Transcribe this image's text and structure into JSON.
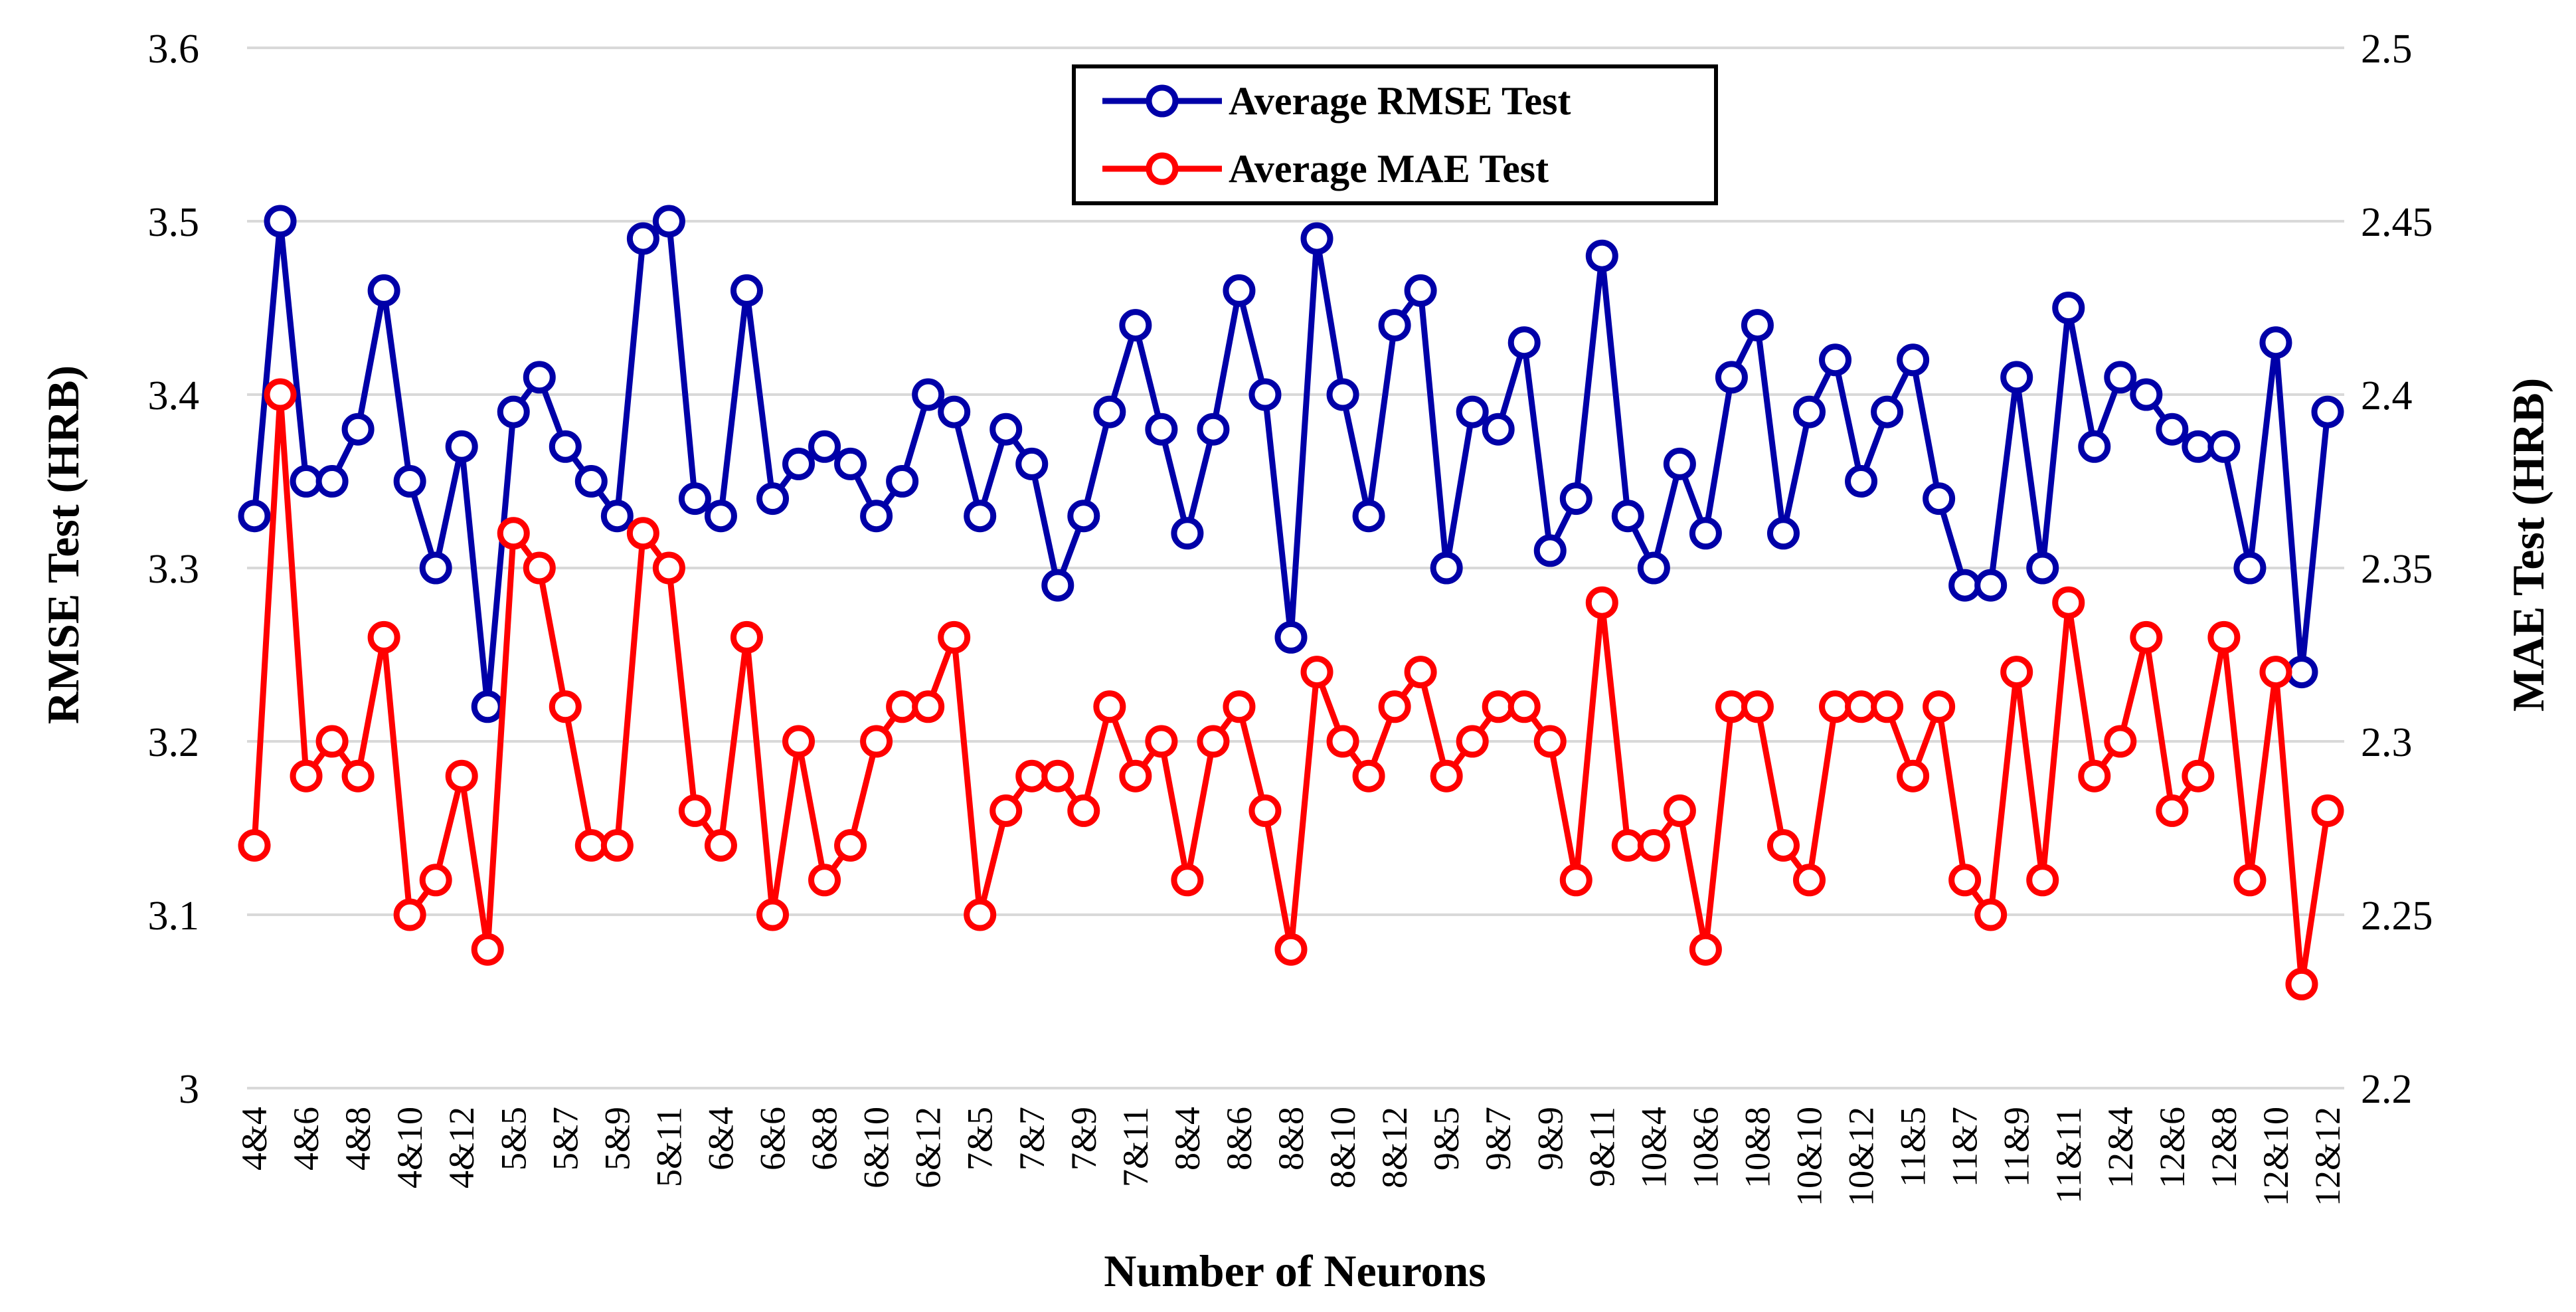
{
  "chart_data": {
    "type": "line",
    "xlabel": "Number of Neurons",
    "ylabel": "RMSE Test (HRB)",
    "y2label": "MAE Test (HRB)",
    "ylim": [
      3.0,
      3.6
    ],
    "y2lim": [
      2.2,
      2.5
    ],
    "yticks": [
      "3",
      "3.1",
      "3.2",
      "3.3",
      "3.4",
      "3.5",
      "3.6"
    ],
    "y2ticks": [
      "2.2",
      "2.25",
      "2.3",
      "2.35",
      "2.4",
      "2.45",
      "2.5"
    ],
    "legend_position": "top-center",
    "categories": [
      "4&4",
      "4&5",
      "4&6",
      "4&7",
      "4&8",
      "4&9",
      "4&10",
      "4&11",
      "4&12",
      "5&4",
      "5&5",
      "5&6",
      "5&7",
      "5&8",
      "5&9",
      "5&10",
      "5&11",
      "5&12",
      "6&4",
      "6&5",
      "6&6",
      "6&7",
      "6&8",
      "6&9",
      "6&10",
      "6&11",
      "6&12",
      "7&4",
      "7&5",
      "7&6",
      "7&7",
      "7&8",
      "7&9",
      "7&10",
      "7&11",
      "7&12",
      "8&4",
      "8&5",
      "8&6",
      "8&7",
      "8&8",
      "8&9",
      "8&10",
      "8&11",
      "8&12",
      "9&4",
      "9&5",
      "9&6",
      "9&7",
      "9&8",
      "9&9",
      "9&10",
      "9&11",
      "9&12",
      "10&4",
      "10&5",
      "10&6",
      "10&7",
      "10&8",
      "10&9",
      "10&10",
      "10&11",
      "10&12",
      "11&4",
      "11&5",
      "11&6",
      "11&7",
      "11&8",
      "11&9",
      "11&10",
      "11&11",
      "11&12",
      "12&4",
      "12&5",
      "12&6",
      "12&7",
      "12&8",
      "12&9",
      "12&10",
      "12&11",
      "12&12"
    ],
    "tick_labels": [
      "4&4",
      "4&6",
      "4&8",
      "4&10",
      "4&12",
      "5&5",
      "5&7",
      "5&9",
      "5&11",
      "6&4",
      "6&6",
      "6&8",
      "6&10",
      "6&12",
      "7&5",
      "7&7",
      "7&9",
      "7&11",
      "8&4",
      "8&6",
      "8&8",
      "8&10",
      "8&12",
      "9&5",
      "9&7",
      "9&9",
      "9&11",
      "10&4",
      "10&6",
      "10&8",
      "10&10",
      "10&12",
      "11&5",
      "11&7",
      "11&9",
      "11&11",
      "12&4",
      "12&6",
      "12&8",
      "12&10",
      "12&12"
    ],
    "series": [
      {
        "name": "Average RMSE Test",
        "axis": "left",
        "color": "#0000A8",
        "values": [
          3.33,
          3.5,
          3.35,
          3.35,
          3.38,
          3.46,
          3.35,
          3.3,
          3.37,
          3.22,
          3.39,
          3.41,
          3.37,
          3.35,
          3.33,
          3.49,
          3.5,
          3.34,
          3.33,
          3.46,
          3.34,
          3.36,
          3.37,
          3.36,
          3.33,
          3.35,
          3.4,
          3.39,
          3.33,
          3.38,
          3.36,
          3.29,
          3.33,
          3.39,
          3.44,
          3.38,
          3.32,
          3.38,
          3.46,
          3.4,
          3.26,
          3.49,
          3.4,
          3.33,
          3.44,
          3.46,
          3.3,
          3.39,
          3.38,
          3.43,
          3.31,
          3.34,
          3.48,
          3.33,
          3.3,
          3.36,
          3.32,
          3.41,
          3.44,
          3.32,
          3.39,
          3.42,
          3.35,
          3.39,
          3.42,
          3.34,
          3.29,
          3.29,
          3.41,
          3.3,
          3.45,
          3.37,
          3.41,
          3.4,
          3.38,
          3.37,
          3.37,
          3.3,
          3.43,
          3.24,
          3.39
        ]
      },
      {
        "name": "Average MAE Test",
        "axis": "right",
        "color": "#FF0000",
        "values": [
          2.27,
          2.4,
          2.29,
          2.3,
          2.29,
          2.33,
          2.25,
          2.26,
          2.29,
          2.24,
          2.36,
          2.35,
          2.31,
          2.27,
          2.27,
          2.36,
          2.35,
          2.28,
          2.27,
          2.33,
          2.25,
          2.3,
          2.26,
          2.27,
          2.3,
          2.31,
          2.31,
          2.33,
          2.25,
          2.28,
          2.29,
          2.29,
          2.28,
          2.31,
          2.29,
          2.3,
          2.26,
          2.3,
          2.31,
          2.28,
          2.24,
          2.32,
          2.3,
          2.29,
          2.31,
          2.32,
          2.29,
          2.3,
          2.31,
          2.31,
          2.3,
          2.26,
          2.34,
          2.27,
          2.27,
          2.28,
          2.24,
          2.31,
          2.31,
          2.27,
          2.26,
          2.31,
          2.31,
          2.31,
          2.29,
          2.31,
          2.26,
          2.25,
          2.32,
          2.26,
          2.34,
          2.29,
          2.3,
          2.33,
          2.28,
          2.29,
          2.33,
          2.26,
          2.32,
          2.23,
          2.28
        ]
      }
    ]
  }
}
